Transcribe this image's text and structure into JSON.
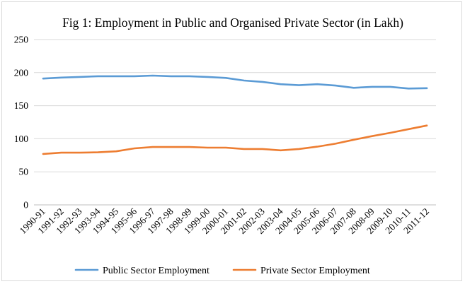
{
  "chart_data": {
    "type": "line",
    "title": "Fig 1: Employment in Public and Organised Private Sector (in Lakh)",
    "xlabel": "",
    "ylabel": "",
    "ylim": [
      0,
      250
    ],
    "yticks": [
      "0",
      "50",
      "100",
      "150",
      "200",
      "250"
    ],
    "grid": true,
    "legend_position": "bottom",
    "categories": [
      "1990-91",
      "1991-92",
      "1992-93",
      "1993-94",
      "1994-95",
      "1995-96",
      "1996-97",
      "1997-98",
      "1998-99",
      "1999-00",
      "2000-01",
      "2001-02",
      "2002-03",
      "2003-04",
      "2004-05",
      "2005-06",
      "2006-07",
      "2007-08",
      "2008-09",
      "2009-10",
      "2010-11",
      "2011-12"
    ],
    "series": [
      {
        "name": "Public Sector Employment",
        "color": "#5b9bd5",
        "values": [
          191,
          192.5,
          193.5,
          194.5,
          194.5,
          194.5,
          195.5,
          194.5,
          194.5,
          193.5,
          192,
          188,
          186,
          182.5,
          181,
          182.5,
          180.5,
          177,
          178.5,
          178.5,
          176,
          176.5
        ]
      },
      {
        "name": "Private Sector Employment",
        "color": "#ed7d31",
        "values": [
          77,
          79,
          79,
          79.5,
          81,
          85.5,
          87.5,
          87.5,
          87.5,
          86.5,
          86.5,
          84.5,
          84.5,
          82.5,
          84.5,
          88,
          92.5,
          98.5,
          104,
          109,
          114.5,
          120
        ]
      }
    ]
  }
}
